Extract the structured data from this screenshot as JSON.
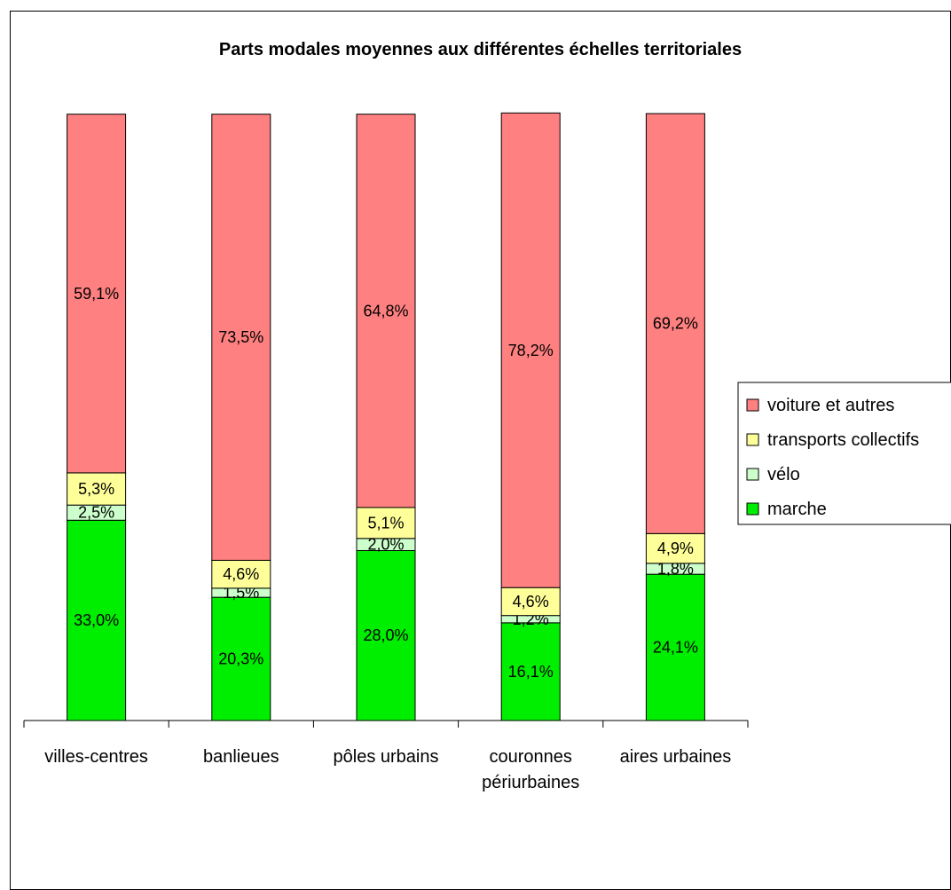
{
  "chart_data": {
    "type": "bar",
    "stacked": true,
    "percent_stacked": true,
    "title": "Parts modales moyennes aux différentes échelles territoriales",
    "categories": [
      "villes-centres",
      "banlieues",
      "pôles urbains",
      "couronnes périurbaines",
      "aires urbaines"
    ],
    "category_lines": [
      [
        "villes-centres"
      ],
      [
        "banlieues"
      ],
      [
        "pôles urbains"
      ],
      [
        "couronnes",
        "périurbaines"
      ],
      [
        "aires urbaines"
      ]
    ],
    "series": [
      {
        "name": "marche",
        "color": "#00ee00",
        "values": [
          33.0,
          20.3,
          28.0,
          16.1,
          24.1
        ],
        "labels": [
          "33,0%",
          "20,3%",
          "28,0%",
          "16,1%",
          "24,1%"
        ]
      },
      {
        "name": "vélo",
        "color": "#ccffcc",
        "values": [
          2.5,
          1.5,
          2.0,
          1.2,
          1.8
        ],
        "labels": [
          "2,5%",
          "1,5%",
          "2,0%",
          "1,2%",
          "1,8%"
        ]
      },
      {
        "name": "transports collectifs",
        "color": "#ffff99",
        "values": [
          5.3,
          4.6,
          5.1,
          4.6,
          4.9
        ],
        "labels": [
          "5,3%",
          "4,6%",
          "5,1%",
          "4,6%",
          "4,9%"
        ]
      },
      {
        "name": "voiture et autres",
        "color": "#ff8080",
        "values": [
          59.1,
          73.5,
          64.8,
          78.2,
          69.2
        ],
        "labels": [
          "59,1%",
          "73,5%",
          "64,8%",
          "78,2%",
          "69,2%"
        ]
      }
    ],
    "legend": {
      "position": "right",
      "order": [
        "voiture et autres",
        "transports collectifs",
        "vélo",
        "marche"
      ]
    },
    "grid": false
  }
}
